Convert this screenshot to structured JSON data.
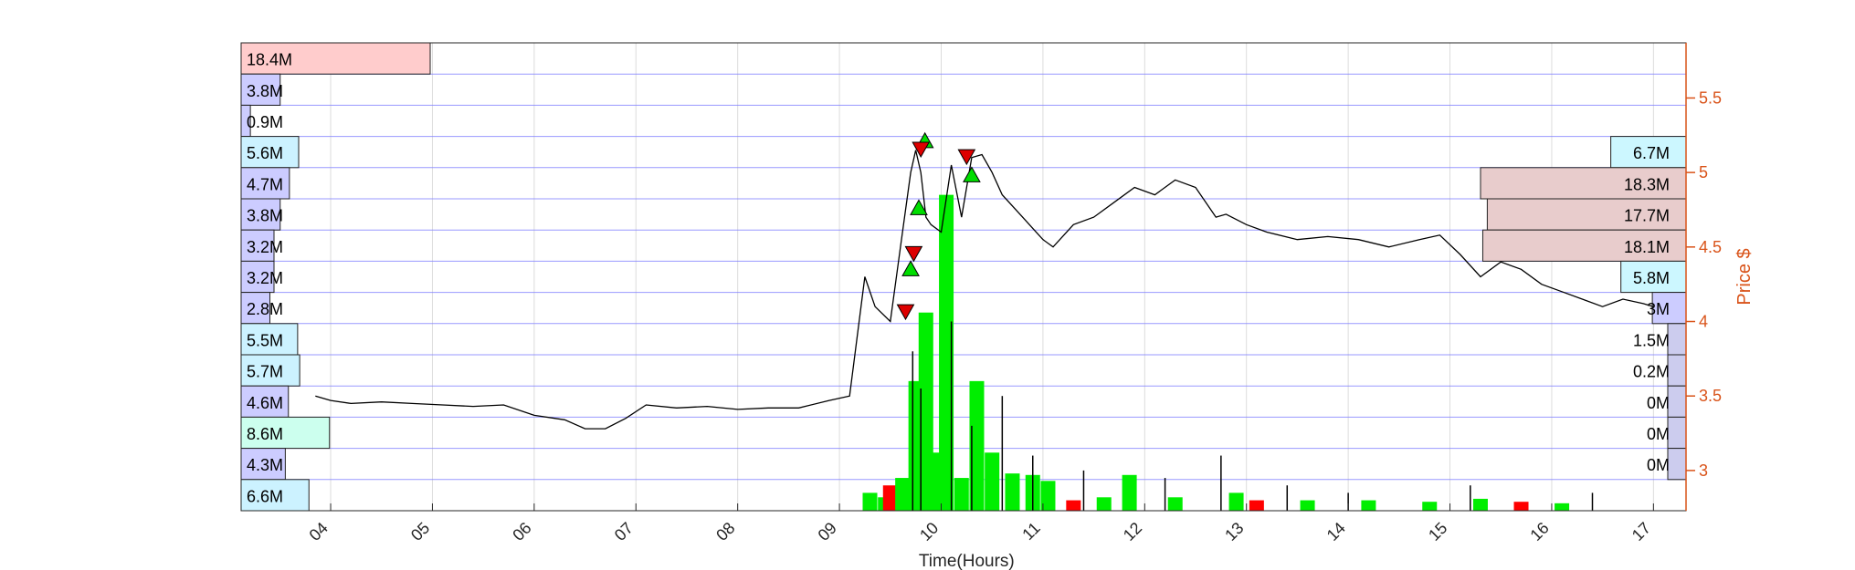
{
  "chart_data": {
    "type": "line",
    "title": "",
    "xlabel": "Time(Hours)",
    "ylabel": "Price $",
    "x_ticks": [
      "04",
      "05",
      "06",
      "07",
      "08",
      "09",
      "10",
      "11",
      "12",
      "13",
      "14",
      "15",
      "16",
      "17"
    ],
    "x_range": [
      3.12,
      17.32
    ],
    "y_ticks": [
      "3",
      "3.5",
      "4",
      "4.5",
      "5",
      "5.5"
    ],
    "ylim": [
      2.73,
      5.87
    ],
    "grid": true,
    "colors": {
      "price_line": "#000000",
      "right_axis": "#d95319",
      "level_line": "#8080ff",
      "buy_marker": "#00dd00",
      "sell_marker": "#dd0000",
      "volume_up": "#00ee00",
      "volume_down": "#ff0000"
    },
    "left_profile": {
      "labels": [
        "18.4M",
        "3.8M",
        "0.9M",
        "5.6M",
        "4.7M",
        "3.8M",
        "3.2M",
        "3.2M",
        "2.8M",
        "5.5M",
        "5.7M",
        "4.6M",
        "8.6M",
        "4.3M",
        "6.6M"
      ],
      "values": [
        18.4,
        3.8,
        0.9,
        5.6,
        4.7,
        3.8,
        3.2,
        3.2,
        2.8,
        5.5,
        5.7,
        4.6,
        8.6,
        4.3,
        6.6
      ],
      "fills": [
        "#ffcccc",
        "#ccccff",
        "#ccccff",
        "#ccf2ff",
        "#ccccff",
        "#ccccff",
        "#ccccff",
        "#ccccff",
        "#ccccff",
        "#ccf2ff",
        "#ccf2ff",
        "#ccccff",
        "#ccffee",
        "#ccccff",
        "#ccf2ff"
      ]
    },
    "right_profile": {
      "labels": [
        "6.7M",
        "18.3M",
        "17.7M",
        "18.1M",
        "5.8M",
        "3M",
        "1.5M",
        "0.2M",
        "0M",
        "0M",
        "0M"
      ],
      "values": [
        6.7,
        18.3,
        17.7,
        18.1,
        5.8,
        3.0,
        1.5,
        0.2,
        0.0,
        0.0,
        0.0
      ],
      "fills": [
        "#ccf7ff",
        "#e8cccc",
        "#e8cccc",
        "#e8cccc",
        "#ccf7ff",
        "#ccccff",
        "#ccccee",
        "#ccccee",
        "#ccccee",
        "#ccccee",
        "#ccccee"
      ]
    },
    "series": [
      {
        "x": [
          3.85,
          4.0,
          4.2,
          4.5,
          4.8,
          5.1,
          5.4,
          5.7,
          6.0,
          6.3,
          6.5,
          6.7,
          6.9,
          7.1,
          7.4,
          7.7,
          8.0,
          8.3,
          8.6,
          8.9,
          9.1,
          9.25,
          9.35,
          9.5,
          9.6,
          9.7,
          9.75,
          9.8,
          9.85,
          9.9,
          10.0,
          10.1,
          10.2,
          10.3,
          10.4,
          10.5,
          10.6,
          10.8,
          11.0,
          11.1,
          11.3,
          11.5,
          11.7,
          11.9,
          12.1,
          12.3,
          12.5,
          12.7,
          12.8,
          13.0,
          13.2,
          13.5,
          13.8,
          14.1,
          14.4,
          14.7,
          14.9,
          15.1,
          15.3,
          15.5,
          15.7,
          15.9,
          16.1,
          16.3,
          16.5,
          16.7,
          16.9,
          17.0
        ],
        "y": [
          3.5,
          3.47,
          3.45,
          3.46,
          3.45,
          3.44,
          3.43,
          3.44,
          3.37,
          3.34,
          3.28,
          3.28,
          3.35,
          3.44,
          3.42,
          3.43,
          3.41,
          3.42,
          3.42,
          3.47,
          3.5,
          4.3,
          4.1,
          4.0,
          4.5,
          5.0,
          5.15,
          5.0,
          4.7,
          4.65,
          4.6,
          5.05,
          4.7,
          5.1,
          5.12,
          5.0,
          4.85,
          4.7,
          4.55,
          4.5,
          4.65,
          4.7,
          4.8,
          4.9,
          4.85,
          4.95,
          4.9,
          4.7,
          4.72,
          4.65,
          4.6,
          4.55,
          4.57,
          4.55,
          4.5,
          4.55,
          4.58,
          4.45,
          4.3,
          4.4,
          4.35,
          4.25,
          4.2,
          4.15,
          4.1,
          4.15,
          4.12,
          4.1
        ]
      }
    ],
    "buy_markers": [
      {
        "x": 9.7,
        "y": 4.35
      },
      {
        "x": 9.78,
        "y": 4.76
      },
      {
        "x": 9.84,
        "y": 5.21
      },
      {
        "x": 10.3,
        "y": 4.98
      }
    ],
    "sell_markers": [
      {
        "x": 9.65,
        "y": 4.07
      },
      {
        "x": 9.73,
        "y": 4.46
      },
      {
        "x": 9.8,
        "y": 5.16
      },
      {
        "x": 10.25,
        "y": 5.11
      }
    ],
    "volume_bars": [
      {
        "x": 9.3,
        "y": 2.85,
        "up": true
      },
      {
        "x": 9.45,
        "y": 2.82,
        "up": true
      },
      {
        "x": 9.5,
        "y": 2.9,
        "up": false
      },
      {
        "x": 9.62,
        "y": 2.95,
        "up": true
      },
      {
        "x": 9.75,
        "y": 3.6,
        "up": true
      },
      {
        "x": 9.85,
        "y": 4.06,
        "up": true
      },
      {
        "x": 9.95,
        "y": 3.12,
        "up": true
      },
      {
        "x": 10.05,
        "y": 4.85,
        "up": true
      },
      {
        "x": 10.2,
        "y": 2.95,
        "up": true
      },
      {
        "x": 10.35,
        "y": 3.6,
        "up": true
      },
      {
        "x": 10.5,
        "y": 3.12,
        "up": true
      },
      {
        "x": 10.7,
        "y": 2.98,
        "up": true
      },
      {
        "x": 10.9,
        "y": 2.97,
        "up": true
      },
      {
        "x": 11.05,
        "y": 2.93,
        "up": true
      },
      {
        "x": 11.3,
        "y": 2.8,
        "up": false
      },
      {
        "x": 11.6,
        "y": 2.82,
        "up": true
      },
      {
        "x": 11.85,
        "y": 2.97,
        "up": true
      },
      {
        "x": 12.3,
        "y": 2.82,
        "up": true
      },
      {
        "x": 12.9,
        "y": 2.85,
        "up": true
      },
      {
        "x": 13.1,
        "y": 2.8,
        "up": false
      },
      {
        "x": 13.6,
        "y": 2.8,
        "up": true
      },
      {
        "x": 14.2,
        "y": 2.8,
        "up": true
      },
      {
        "x": 14.8,
        "y": 2.79,
        "up": true
      },
      {
        "x": 15.3,
        "y": 2.81,
        "up": true
      },
      {
        "x": 15.7,
        "y": 2.79,
        "up": false
      },
      {
        "x": 16.1,
        "y": 2.78,
        "up": true
      }
    ],
    "volume_spikes": [
      {
        "x": 9.72,
        "y": 3.8
      },
      {
        "x": 9.8,
        "y": 3.55
      },
      {
        "x": 10.1,
        "y": 4.0
      },
      {
        "x": 10.3,
        "y": 3.3
      },
      {
        "x": 10.6,
        "y": 3.5
      },
      {
        "x": 10.9,
        "y": 3.1
      },
      {
        "x": 11.4,
        "y": 3.0
      },
      {
        "x": 12.2,
        "y": 2.95
      },
      {
        "x": 12.75,
        "y": 3.1
      },
      {
        "x": 13.4,
        "y": 2.9
      },
      {
        "x": 14.0,
        "y": 2.85
      },
      {
        "x": 15.2,
        "y": 2.9
      },
      {
        "x": 16.4,
        "y": 2.85
      }
    ]
  }
}
